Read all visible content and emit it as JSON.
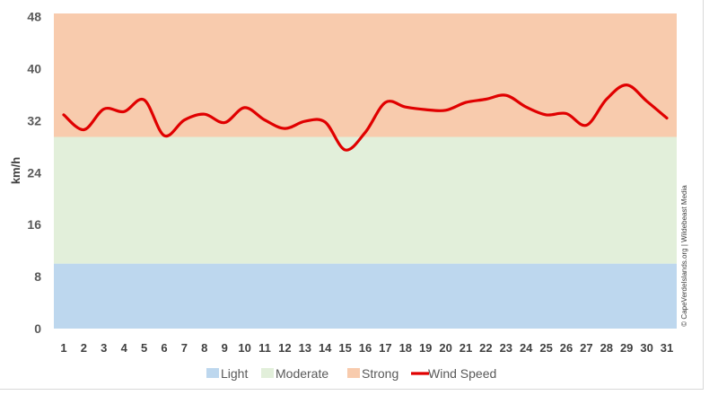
{
  "chart_data": {
    "type": "line",
    "ylabel": "km/h",
    "xlabel": "",
    "title": "",
    "ylim": [
      0,
      48
    ],
    "y_ticks": [
      0,
      8,
      16,
      24,
      32,
      40,
      48
    ],
    "x": [
      1,
      2,
      3,
      4,
      5,
      6,
      7,
      8,
      9,
      10,
      11,
      12,
      13,
      14,
      15,
      16,
      17,
      18,
      19,
      20,
      21,
      22,
      23,
      24,
      25,
      26,
      27,
      28,
      29,
      30,
      31
    ],
    "bands": [
      {
        "name": "Light",
        "from": 0,
        "to": 10,
        "color": "#bdd7ee"
      },
      {
        "name": "Moderate",
        "from": 10,
        "to": 29.5,
        "color": "#e2efda"
      },
      {
        "name": "Strong",
        "from": 29.5,
        "to": 50,
        "color": "#f8cbad"
      }
    ],
    "series": [
      {
        "name": "Wind Speed",
        "color": "#e00000",
        "values": [
          32.9,
          30.6,
          33.8,
          33.4,
          35.2,
          29.7,
          32.1,
          33.0,
          31.7,
          34.0,
          32.1,
          30.8,
          31.9,
          31.8,
          27.5,
          30.2,
          34.8,
          34.1,
          33.7,
          33.6,
          34.8,
          35.3,
          35.9,
          34.1,
          32.9,
          33.1,
          31.3,
          35.3,
          37.5,
          35.0,
          32.4
        ]
      }
    ],
    "legend_position": "bottom",
    "grid": false
  },
  "credit": "© CapeVerdeIslands.org | Wildebeast Media"
}
